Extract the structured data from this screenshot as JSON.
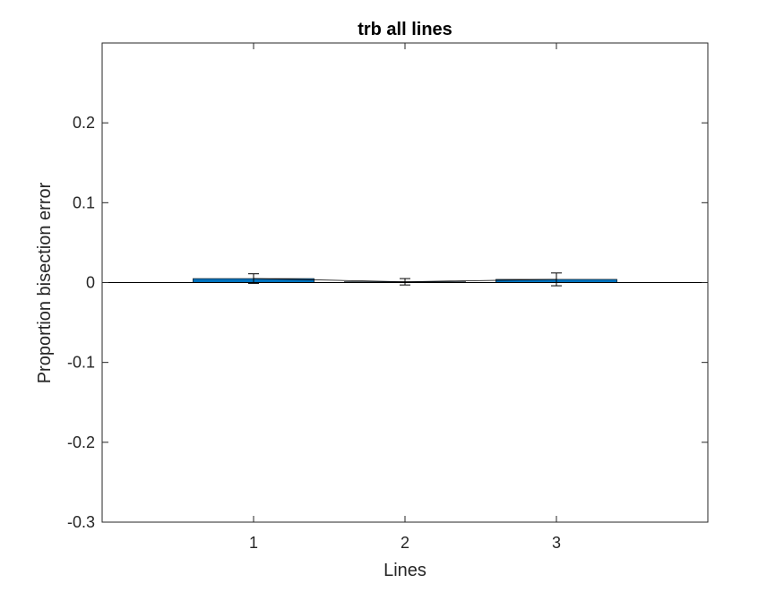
{
  "chart_data": {
    "type": "bar",
    "title": "trb all lines",
    "xlabel": "Lines",
    "ylabel": "Proportion bisection error",
    "categories": [
      "1",
      "2",
      "3"
    ],
    "xlim": [
      0,
      4
    ],
    "ylim": [
      -0.3,
      0.3
    ],
    "yticks": [
      -0.3,
      -0.2,
      -0.1,
      0,
      0.1,
      0.2
    ],
    "ytick_labels": [
      "-0.3",
      "-0.2",
      "-0.1",
      "0",
      "0.1",
      "0.2"
    ],
    "series": [
      {
        "values": [
          0.005,
          0.001,
          0.004
        ],
        "error": [
          0.006,
          0.004,
          0.008
        ],
        "color": "#0072BD"
      }
    ],
    "connecting_line": true,
    "grid": false,
    "legend": "none"
  }
}
